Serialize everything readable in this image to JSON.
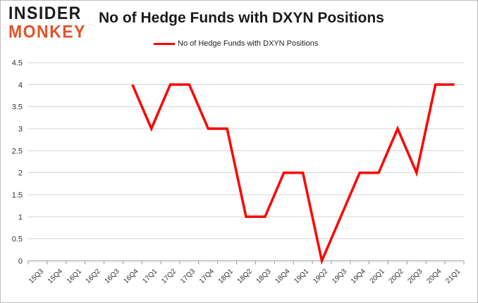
{
  "logo": {
    "line1": "INSIDER",
    "line2": "MONKEY"
  },
  "chart_data": {
    "type": "line",
    "title": "No of Hedge Funds with DXYN Positions",
    "xlabel": "",
    "ylabel": "",
    "categories": [
      "15Q3",
      "15Q4",
      "16Q1",
      "16Q2",
      "16Q3",
      "16Q4",
      "17Q1",
      "17Q2",
      "17Q3",
      "17Q4",
      "18Q1",
      "18Q2",
      "18Q3",
      "18Q4",
      "19Q1",
      "19Q2",
      "19Q3",
      "19Q4",
      "20Q1",
      "20Q2",
      "20Q3",
      "20Q4",
      "21Q1"
    ],
    "series": [
      {
        "name": "No of Hedge Funds with DXYN Positions",
        "color": "#ff0000",
        "values": [
          null,
          null,
          null,
          null,
          null,
          4,
          3,
          4,
          4,
          3,
          3,
          1,
          1,
          2,
          2,
          0,
          1,
          2,
          2,
          3,
          2,
          4,
          4
        ]
      }
    ],
    "yticks": [
      "0",
      "0.5",
      "1",
      "1.5",
      "2",
      "2.5",
      "3",
      "3.5",
      "4",
      "4.5"
    ],
    "ylim": [
      0,
      4.5
    ],
    "grid": true,
    "legend_position": "top"
  }
}
